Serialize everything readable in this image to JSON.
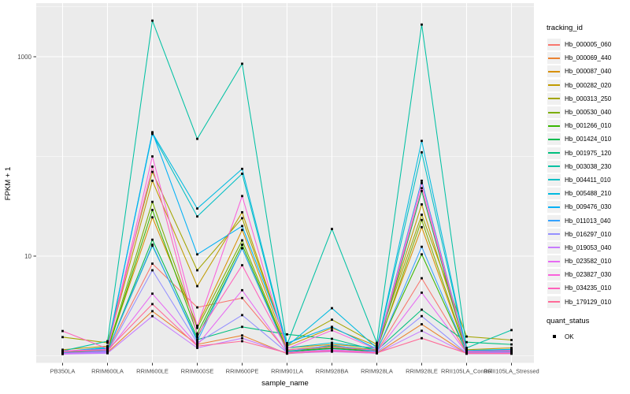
{
  "figure": {
    "kind": "ggplot-line-chart"
  },
  "chart_data": {
    "type": "line",
    "title": "",
    "xlabel": "sample_name",
    "ylabel": "FPKM + 1",
    "y_scale": "log10",
    "values_are": "FPKM + 1",
    "grid": "on",
    "legend_position": "right",
    "y_ticks": [
      {
        "label": "10",
        "value": 10
      },
      {
        "label": "1000",
        "value": 1000
      }
    ],
    "y_major_gridlines": [
      10,
      1000
    ],
    "y_minor_gridlines": [
      1,
      100,
      3162
    ],
    "ylim": [
      0.86,
      3270
    ],
    "categories": [
      "PB350LA",
      "RRIM600LA",
      "RRIM600LE",
      "RRIM600SE",
      "RRIM600PE",
      "RRIM901LA",
      "RRIM928BA",
      "RRIM928LA",
      "RRIM928LE",
      "RRII105LA_Control",
      "RRII105LA_Stressed"
    ],
    "series": [
      {
        "name": "Hb_000005_060",
        "color": "#F8766D",
        "values": [
          1.1,
          1.12,
          8.4,
          3.06,
          3.8,
          1.1,
          1.2,
          1.1,
          6.0,
          1.08,
          1.08
        ]
      },
      {
        "name": "Hb_000069_440",
        "color": "#EA8331",
        "values": [
          1.05,
          1.08,
          2.8,
          1.3,
          1.6,
          1.05,
          1.12,
          1.06,
          2.07,
          1.05,
          1.05
        ]
      },
      {
        "name": "Hb_000087_040",
        "color": "#D89000",
        "values": [
          1.1,
          1.15,
          24.5,
          2.0,
          18.3,
          1.2,
          1.3,
          1.2,
          19.5,
          1.1,
          1.1
        ]
      },
      {
        "name": "Hb_000282_020",
        "color": "#C09B00",
        "values": [
          1.15,
          1.25,
          57,
          5.0,
          27.5,
          1.25,
          1.9,
          1.25,
          33,
          1.15,
          1.2
        ]
      },
      {
        "name": "Hb_000313_250",
        "color": "#A3A500",
        "values": [
          1.54,
          1.35,
          70,
          7.2,
          24,
          1.3,
          2.3,
          1.3,
          26,
          1.56,
          1.44
        ]
      },
      {
        "name": "Hb_000530_040",
        "color": "#7CAE00",
        "values": [
          1.1,
          1.15,
          35,
          1.9,
          14.4,
          1.15,
          1.25,
          1.15,
          23,
          1.1,
          1.12
        ]
      },
      {
        "name": "Hb_001266_010",
        "color": "#39B600",
        "values": [
          1.08,
          1.12,
          29,
          1.67,
          13,
          1.12,
          1.2,
          1.12,
          10.4,
          1.08,
          1.1
        ]
      },
      {
        "name": "Hb_001424_010",
        "color": "#00BB4E",
        "values": [
          1.06,
          1.1,
          14.6,
          1.53,
          12,
          1.1,
          1.18,
          1.1,
          45,
          1.07,
          1.08
        ]
      },
      {
        "name": "Hb_001975_120",
        "color": "#00BF7D",
        "values": [
          1.07,
          1.12,
          12.7,
          1.45,
          1.95,
          1.64,
          1.48,
          1.13,
          2.9,
          1.37,
          1.3
        ]
      },
      {
        "name": "Hb_003038_230",
        "color": "#00C1A3",
        "values": [
          1.12,
          1.4,
          2300,
          150,
          850,
          1.3,
          18.7,
          1.35,
          2100,
          1.2,
          1.81
        ]
      },
      {
        "name": "Hb_004411_010",
        "color": "#00BFC4",
        "values": [
          1.08,
          1.2,
          168,
          25,
          67,
          1.2,
          1.35,
          1.18,
          110,
          1.12,
          1.15
        ]
      },
      {
        "name": "Hb_005488_210",
        "color": "#00BAE0",
        "values": [
          1.1,
          1.22,
          172,
          30,
          75,
          1.25,
          3.0,
          1.2,
          143,
          1.13,
          1.16
        ]
      },
      {
        "name": "Hb_009476_030",
        "color": "#00B0F6",
        "values": [
          1.09,
          1.18,
          175,
          10.4,
          20,
          1.34,
          1.95,
          1.17,
          57,
          1.11,
          1.14
        ]
      },
      {
        "name": "Hb_011013_040",
        "color": "#35A2FF",
        "values": [
          1.06,
          1.12,
          13,
          1.4,
          12,
          1.1,
          1.28,
          1.1,
          12.4,
          1.09,
          1.1
        ]
      },
      {
        "name": "Hb_016297_010",
        "color": "#9590FF",
        "values": [
          1.05,
          1.08,
          7.2,
          1.35,
          2.56,
          1.08,
          1.15,
          1.08,
          2.5,
          1.06,
          1.07
        ]
      },
      {
        "name": "Hb_019053_040",
        "color": "#C77CFF",
        "values": [
          1.04,
          1.06,
          2.5,
          1.2,
          1.5,
          1.06,
          1.1,
          1.06,
          1.78,
          1.05,
          1.05
        ]
      },
      {
        "name": "Hb_023582_010",
        "color": "#E76BF3",
        "values": [
          1.06,
          1.1,
          4.2,
          1.28,
          4.55,
          1.08,
          1.14,
          1.09,
          4.3,
          1.07,
          1.08
        ]
      },
      {
        "name": "Hb_023827_030",
        "color": "#FA62DB",
        "values": [
          1.12,
          1.16,
          100,
          1.98,
          40,
          1.18,
          1.8,
          1.16,
          54,
          1.1,
          1.13
        ]
      },
      {
        "name": "Hb_034235_010",
        "color": "#FF62BC",
        "values": [
          1.77,
          1.18,
          79,
          1.6,
          8.1,
          1.15,
          1.22,
          1.14,
          48,
          1.11,
          1.12
        ]
      },
      {
        "name": "Hb_179129_010",
        "color": "#FF6A98",
        "values": [
          1.1,
          1.14,
          3.3,
          1.25,
          1.4,
          1.07,
          1.12,
          1.07,
          1.5,
          1.06,
          1.06
        ]
      }
    ],
    "legend": {
      "tracking_id_title": "tracking_id",
      "quant_status_title": "quant_status",
      "quant_status_items": [
        {
          "label": "OK",
          "marker": "black-square"
        }
      ]
    },
    "style": {
      "panel_bg": "#EBEBEB",
      "gridline_color": "#FFFFFF",
      "point_color": "#000000",
      "axis_text_color": "#4D4D4D",
      "axis_title_color": "#000000"
    }
  }
}
